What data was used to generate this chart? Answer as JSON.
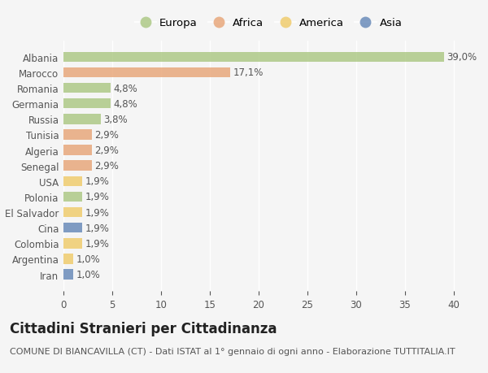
{
  "countries": [
    "Albania",
    "Marocco",
    "Romania",
    "Germania",
    "Russia",
    "Tunisia",
    "Algeria",
    "Senegal",
    "USA",
    "Polonia",
    "El Salvador",
    "Cina",
    "Colombia",
    "Argentina",
    "Iran"
  ],
  "values": [
    39.0,
    17.1,
    4.8,
    4.8,
    3.8,
    2.9,
    2.9,
    2.9,
    1.9,
    1.9,
    1.9,
    1.9,
    1.9,
    1.0,
    1.0
  ],
  "labels": [
    "39,0%",
    "17,1%",
    "4,8%",
    "4,8%",
    "3,8%",
    "2,9%",
    "2,9%",
    "2,9%",
    "1,9%",
    "1,9%",
    "1,9%",
    "1,9%",
    "1,9%",
    "1,0%",
    "1,0%"
  ],
  "continents": [
    "Europa",
    "Africa",
    "Europa",
    "Europa",
    "Europa",
    "Africa",
    "Africa",
    "Africa",
    "America",
    "Europa",
    "America",
    "Asia",
    "America",
    "America",
    "Asia"
  ],
  "colors": {
    "Europa": "#aec987",
    "Africa": "#e8a87c",
    "America": "#f0cc6e",
    "Asia": "#6b8cba"
  },
  "xlim": [
    0,
    42
  ],
  "xticks": [
    0,
    5,
    10,
    15,
    20,
    25,
    30,
    35,
    40
  ],
  "title": "Cittadini Stranieri per Cittadinanza",
  "subtitle": "COMUNE DI BIANCAVILLA (CT) - Dati ISTAT al 1° gennaio di ogni anno - Elaborazione TUTTITALIA.IT",
  "background_color": "#f5f5f5",
  "bar_height": 0.65,
  "bar_alpha": 0.85,
  "title_fontsize": 12,
  "subtitle_fontsize": 8,
  "label_fontsize": 8.5,
  "tick_fontsize": 8.5,
  "legend_fontsize": 9.5
}
